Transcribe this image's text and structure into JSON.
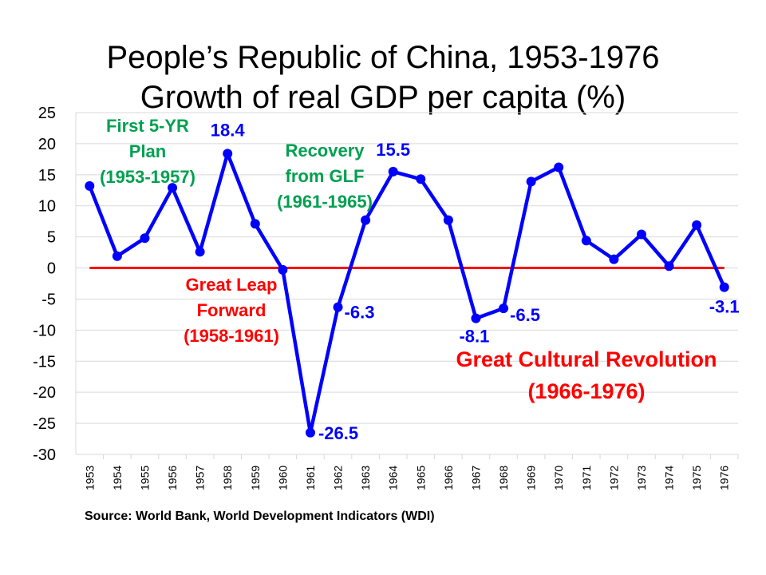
{
  "chart_data": {
    "type": "line",
    "title": "People’s Republic of China, 1953-1976",
    "subtitle": "Growth of real GDP per capita (%)",
    "categories": [
      "1953",
      "1954",
      "1955",
      "1956",
      "1957",
      "1958",
      "1959",
      "1960",
      "1961",
      "1962",
      "1963",
      "1964",
      "1965",
      "1966",
      "1967",
      "1968",
      "1969",
      "1970",
      "1971",
      "1972",
      "1973",
      "1974",
      "1975",
      "1976"
    ],
    "series": [
      {
        "values": [
          13.2,
          1.9,
          4.8,
          12.9,
          2.6,
          18.4,
          7.1,
          -0.3,
          -26.5,
          -6.3,
          7.7,
          15.5,
          14.3,
          7.7,
          -8.1,
          -6.5,
          13.9,
          16.2,
          4.4,
          1.4,
          5.4,
          0.3,
          6.9,
          -3.1
        ],
        "color": "#0000ff"
      }
    ],
    "ylim": [
      -30,
      25
    ],
    "yticks": [
      25,
      20,
      15,
      10,
      5,
      0,
      -5,
      -10,
      -15,
      -20,
      -25,
      -30
    ],
    "grid": true,
    "zero_line_color": "#ff0000",
    "data_labels": [
      {
        "year": "1958",
        "text": "18.4"
      },
      {
        "year": "1961",
        "text": "-26.5"
      },
      {
        "year": "1962",
        "text": "-6.3"
      },
      {
        "year": "1964",
        "text": "15.5"
      },
      {
        "year": "1967",
        "text": "-8.1"
      },
      {
        "year": "1968",
        "text": "-6.5"
      },
      {
        "year": "1976",
        "text": "-3.1"
      }
    ],
    "annotations": {
      "first_plan": [
        "First 5-YR",
        "Plan",
        "(1953-1957)"
      ],
      "recovery": [
        "Recovery",
        "from GLF",
        "(1961-1965)"
      ],
      "glf": [
        "Great Leap",
        "Forward",
        "(1958-1961)"
      ],
      "gcr": [
        "Great Cultural Revolution",
        "(1966-1976)"
      ]
    },
    "source": "Source: World Bank, World Development Indicators (WDI)"
  }
}
